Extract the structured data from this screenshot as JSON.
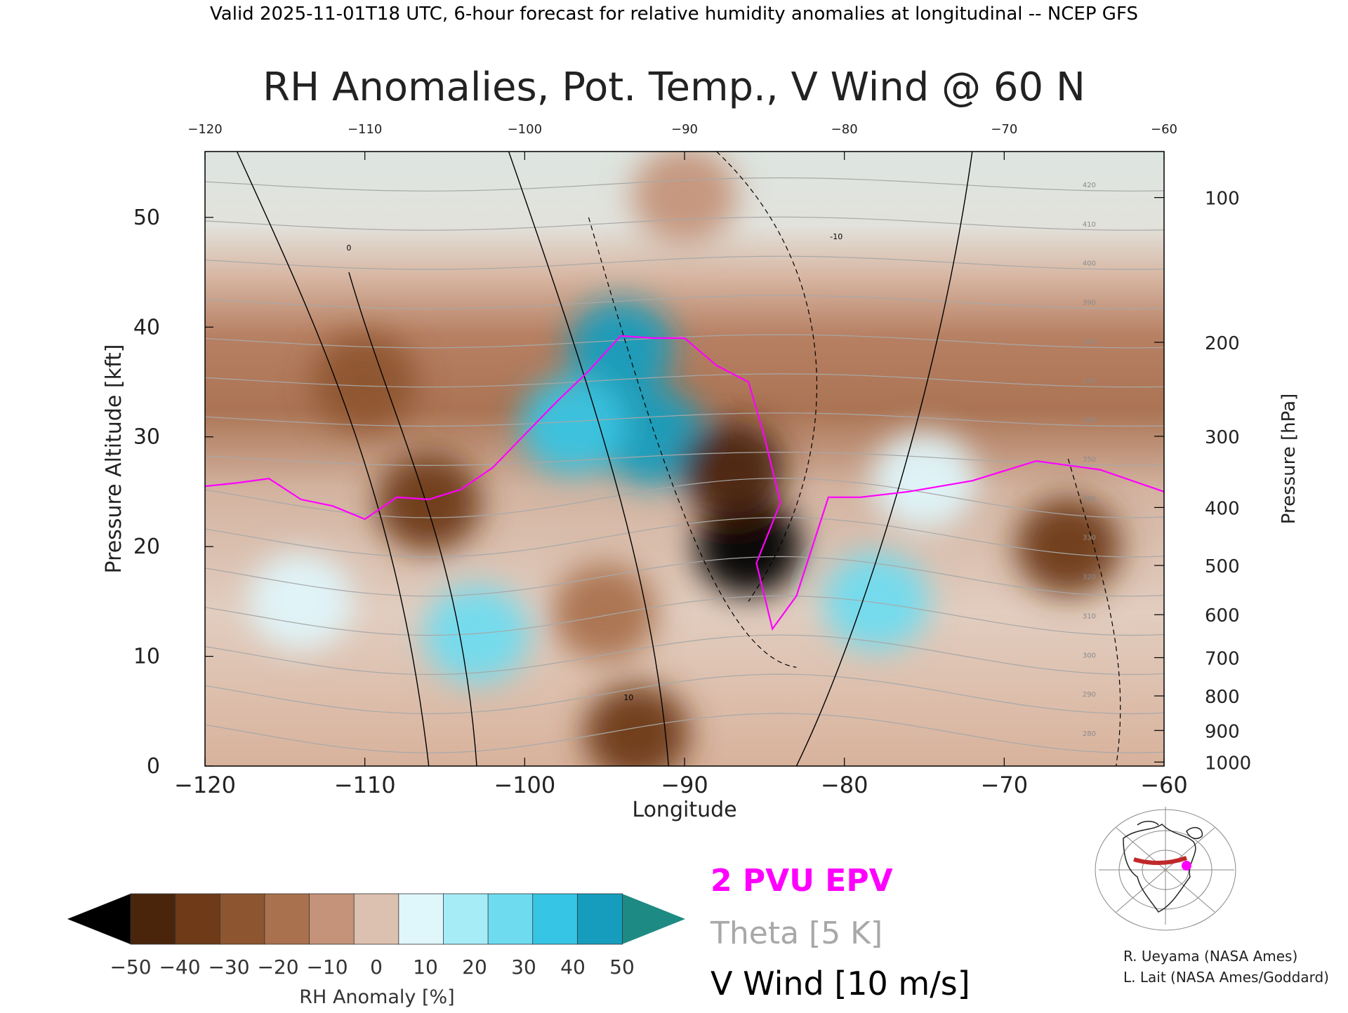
{
  "header": "Valid 2025-11-01T18 UTC, 6-hour forecast for relative humidity anomalies at longitudinal -- NCEP GFS",
  "colorbar": {
    "ticks": [
      "-50",
      "-40",
      "-30",
      "-20",
      "-10",
      "0",
      "10",
      "20",
      "30",
      "40",
      "50"
    ],
    "label": "RH Anomaly [%]",
    "colors": [
      "#4a250c",
      "#6e3a17",
      "#8d5530",
      "#a9714d",
      "#c4937a",
      "#dcc0b0",
      "#dff6fb",
      "#a6ecf7",
      "#6fdbef",
      "#36c5e4",
      "#169dbd"
    ],
    "under_color": "#000000",
    "over_color": "#1e8a84"
  },
  "legend": {
    "pv": "2 PVU EPV",
    "theta": "Theta [5 K]",
    "vwind": "V Wind [10 m/s]",
    "pv_color": "#ff00ff",
    "theta_color": "#a8a8a8",
    "vwind_color": "#000000"
  },
  "credits": [
    "R. Ueyama (NASA Ames)",
    "L. Lait (NASA Ames/Goddard)"
  ],
  "chart_data": {
    "type": "heatmap",
    "title": "RH Anomalies, Pot. Temp., V Wind @ 60 N",
    "xlabel": "Longitude",
    "ylabel": "Pressure Altitude [kft]",
    "y2label": "Pressure [hPa]",
    "xlim": [
      -120,
      -60
    ],
    "ylim": [
      0,
      56
    ],
    "x_ticks": [
      "-120",
      "-110",
      "-100",
      "-90",
      "-80",
      "-70",
      "-60"
    ],
    "y_ticks": [
      "0",
      "10",
      "20",
      "30",
      "40",
      "50"
    ],
    "pressure_ticks": [
      "100",
      "200",
      "300",
      "400",
      "500",
      "600",
      "700",
      "800",
      "900",
      "1000"
    ],
    "theta_labels": [
      "420",
      "410",
      "400",
      "390",
      "380",
      "370",
      "360",
      "350",
      "340",
      "330",
      "320",
      "310",
      "300",
      "290",
      "280"
    ],
    "vwind_labels": [
      "0",
      "10",
      "-10"
    ],
    "rh_anomaly_regions": [
      {
        "lon": -94,
        "kft": 38,
        "value": 50
      },
      {
        "lon": -92,
        "kft": 30,
        "value": 50
      },
      {
        "lon": -97,
        "kft": 31,
        "value": 45
      },
      {
        "lon": -86,
        "kft": 20,
        "value": -55
      },
      {
        "lon": -87,
        "kft": 27,
        "value": -45
      },
      {
        "lon": -106,
        "kft": 24,
        "value": -40
      },
      {
        "lon": -110,
        "kft": 35,
        "value": -30
      },
      {
        "lon": -66,
        "kft": 20,
        "value": -35
      },
      {
        "lon": -93,
        "kft": 3,
        "value": -40
      },
      {
        "lon": -78,
        "kft": 15,
        "value": 30
      },
      {
        "lon": -103,
        "kft": 12,
        "value": 35
      },
      {
        "lon": -114,
        "kft": 15,
        "value": 15
      },
      {
        "lon": -95,
        "kft": 14,
        "value": -20
      },
      {
        "lon": -75,
        "kft": 26,
        "value": 10
      },
      {
        "lon": -90,
        "kft": 52,
        "value": -5
      }
    ],
    "pv_2pvu_kft": [
      [
        -120,
        25.5
      ],
      [
        -118,
        25.8
      ],
      [
        -116,
        26.2
      ],
      [
        -114,
        24.3
      ],
      [
        -112,
        23.7
      ],
      [
        -110,
        22.5
      ],
      [
        -108,
        24.5
      ],
      [
        -106,
        24.3
      ],
      [
        -104,
        25.2
      ],
      [
        -102,
        27.2
      ],
      [
        -100,
        30.2
      ],
      [
        -98,
        33.2
      ],
      [
        -96,
        36.0
      ],
      [
        -94,
        39.2
      ],
      [
        -92,
        39.0
      ],
      [
        -90,
        39.0
      ],
      [
        -88,
        36.5
      ],
      [
        -86,
        35.0
      ],
      [
        -85,
        30.0
      ],
      [
        -84,
        24.0
      ],
      [
        -85.5,
        18.5
      ],
      [
        -84.5,
        12.5
      ],
      [
        -83,
        15.5
      ],
      [
        -81,
        24.5
      ],
      [
        -79,
        24.5
      ],
      [
        -76,
        25.0
      ],
      [
        -72,
        26.0
      ],
      [
        -68,
        27.8
      ],
      [
        -64,
        27.0
      ],
      [
        -60,
        25.0
      ]
    ]
  }
}
